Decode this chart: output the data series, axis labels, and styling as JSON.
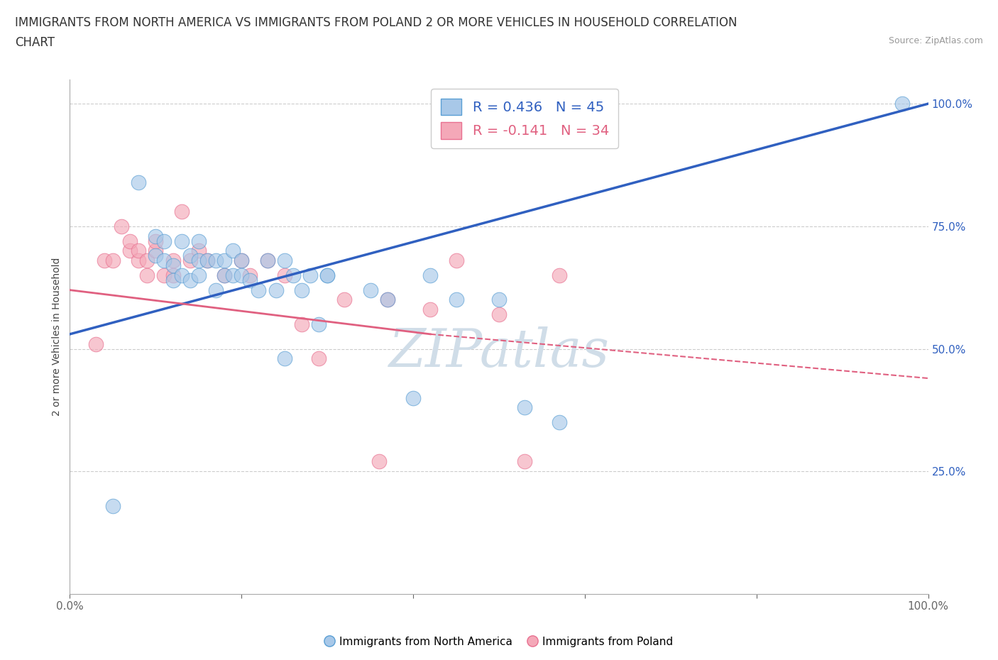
{
  "title_line1": "IMMIGRANTS FROM NORTH AMERICA VS IMMIGRANTS FROM POLAND 2 OR MORE VEHICLES IN HOUSEHOLD CORRELATION",
  "title_line2": "CHART",
  "source_text": "Source: ZipAtlas.com",
  "ylabel": "2 or more Vehicles in Household",
  "xlim": [
    0.0,
    1.0
  ],
  "ylim": [
    0.0,
    1.05
  ],
  "yticks": [
    0.25,
    0.5,
    0.75,
    1.0
  ],
  "ytick_labels": [
    "25.0%",
    "50.0%",
    "75.0%",
    "100.0%"
  ],
  "xticks": [
    0.0,
    0.2,
    0.4,
    0.6,
    0.8,
    1.0
  ],
  "xtick_labels": [
    "",
    "",
    "",
    "",
    "",
    ""
  ],
  "blue_color": "#a8c8e8",
  "pink_color": "#f4a8b8",
  "blue_edge_color": "#5a9fd4",
  "pink_edge_color": "#e87090",
  "trendline_blue_color": "#3060c0",
  "trendline_pink_color": "#e06080",
  "watermark": "ZIPatlas",
  "blue_scatter_x": [
    0.05,
    0.08,
    0.1,
    0.1,
    0.11,
    0.11,
    0.12,
    0.12,
    0.13,
    0.13,
    0.14,
    0.14,
    0.15,
    0.15,
    0.15,
    0.16,
    0.17,
    0.17,
    0.18,
    0.18,
    0.19,
    0.19,
    0.2,
    0.2,
    0.21,
    0.22,
    0.23,
    0.24,
    0.25,
    0.26,
    0.27,
    0.28,
    0.29,
    0.3,
    0.25,
    0.3,
    0.35,
    0.37,
    0.4,
    0.42,
    0.45,
    0.5,
    0.53,
    0.57,
    0.97
  ],
  "blue_scatter_y": [
    0.18,
    0.84,
    0.69,
    0.73,
    0.68,
    0.72,
    0.64,
    0.67,
    0.72,
    0.65,
    0.69,
    0.64,
    0.72,
    0.68,
    0.65,
    0.68,
    0.62,
    0.68,
    0.68,
    0.65,
    0.7,
    0.65,
    0.68,
    0.65,
    0.64,
    0.62,
    0.68,
    0.62,
    0.68,
    0.65,
    0.62,
    0.65,
    0.55,
    0.65,
    0.48,
    0.65,
    0.62,
    0.6,
    0.4,
    0.65,
    0.6,
    0.6,
    0.38,
    0.35,
    1.0
  ],
  "pink_scatter_x": [
    0.03,
    0.04,
    0.05,
    0.06,
    0.07,
    0.07,
    0.08,
    0.08,
    0.09,
    0.09,
    0.1,
    0.1,
    0.11,
    0.12,
    0.12,
    0.13,
    0.14,
    0.15,
    0.16,
    0.18,
    0.2,
    0.21,
    0.23,
    0.25,
    0.27,
    0.29,
    0.32,
    0.36,
    0.37,
    0.42,
    0.45,
    0.5,
    0.53,
    0.57
  ],
  "pink_scatter_y": [
    0.51,
    0.68,
    0.68,
    0.75,
    0.7,
    0.72,
    0.68,
    0.7,
    0.65,
    0.68,
    0.7,
    0.72,
    0.65,
    0.65,
    0.68,
    0.78,
    0.68,
    0.7,
    0.68,
    0.65,
    0.68,
    0.65,
    0.68,
    0.65,
    0.55,
    0.48,
    0.6,
    0.27,
    0.6,
    0.58,
    0.68,
    0.57,
    0.27,
    0.65
  ],
  "blue_trend_x0": 0.0,
  "blue_trend_y0": 0.53,
  "blue_trend_x1": 1.0,
  "blue_trend_y1": 1.0,
  "pink_trend_solid_x0": 0.0,
  "pink_trend_solid_y0": 0.62,
  "pink_trend_solid_x1": 0.42,
  "pink_trend_solid_y1": 0.53,
  "pink_trend_dash_x0": 0.42,
  "pink_trend_dash_y0": 0.53,
  "pink_trend_dash_x1": 1.0,
  "pink_trend_dash_y1": 0.44,
  "legend_label_blue": "Immigrants from North America",
  "legend_label_pink": "Immigrants from Poland",
  "legend_r_blue": "0.436",
  "legend_n_blue": "45",
  "legend_r_pink": "-0.141",
  "legend_n_pink": "34",
  "title_fontsize": 12,
  "axis_label_fontsize": 10,
  "tick_fontsize": 11,
  "ytick_color": "#3060c0",
  "xtick_left_color": "#444444",
  "xtick_right_color": "#3060c0"
}
